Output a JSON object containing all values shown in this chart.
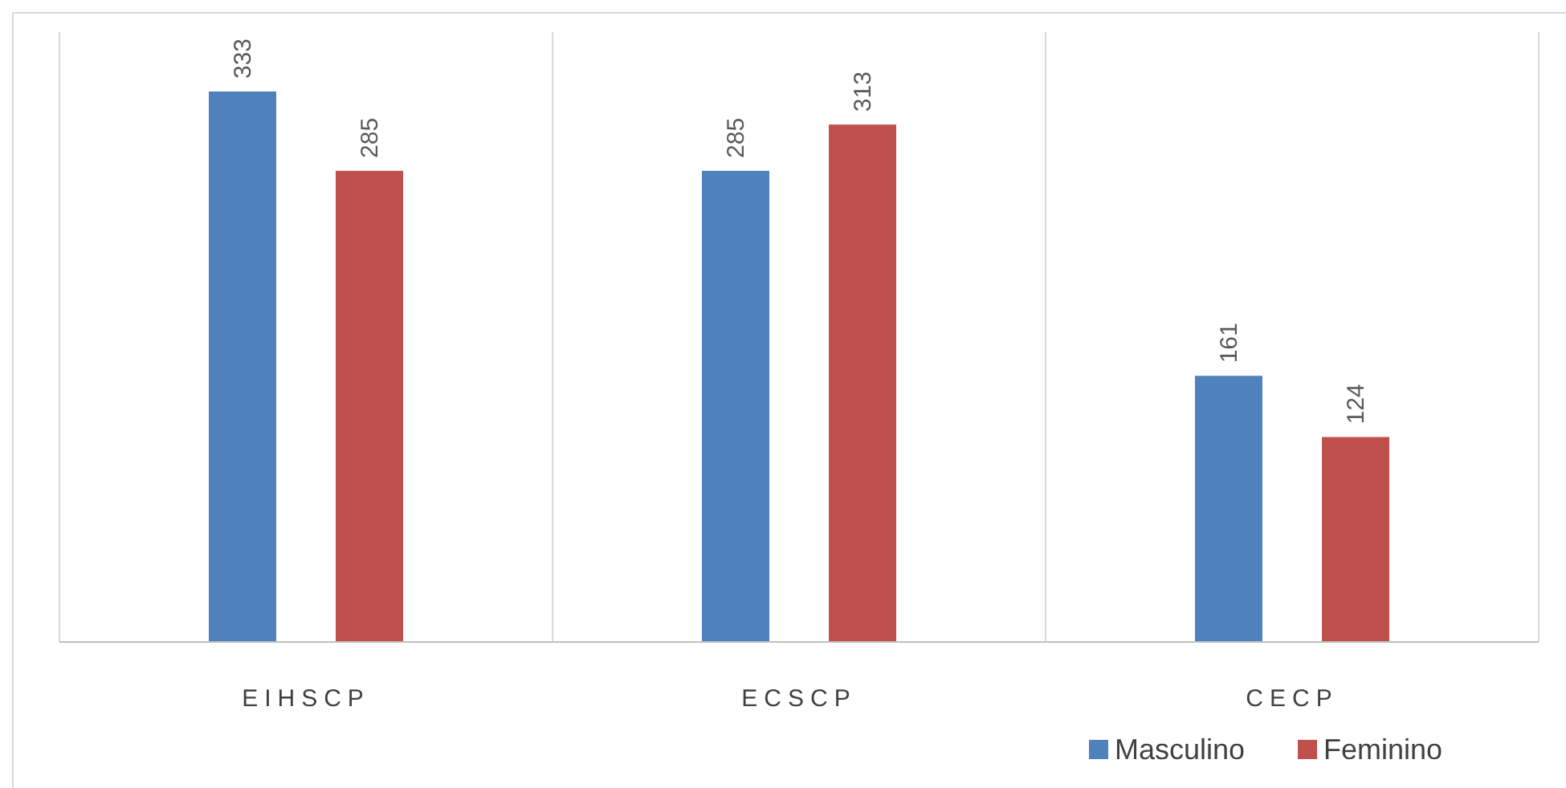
{
  "chart_data": {
    "type": "bar",
    "categories": [
      "EIHSCP",
      "ECSCP",
      "CECP"
    ],
    "series": [
      {
        "name": "Masculino",
        "color": "#4f81bd",
        "values": [
          333,
          285,
          161
        ]
      },
      {
        "name": "Feminino",
        "color": "#c0504d",
        "values": [
          285,
          313,
          124
        ]
      }
    ],
    "data_labels": true,
    "grid": "x",
    "legend": "bottom right"
  }
}
